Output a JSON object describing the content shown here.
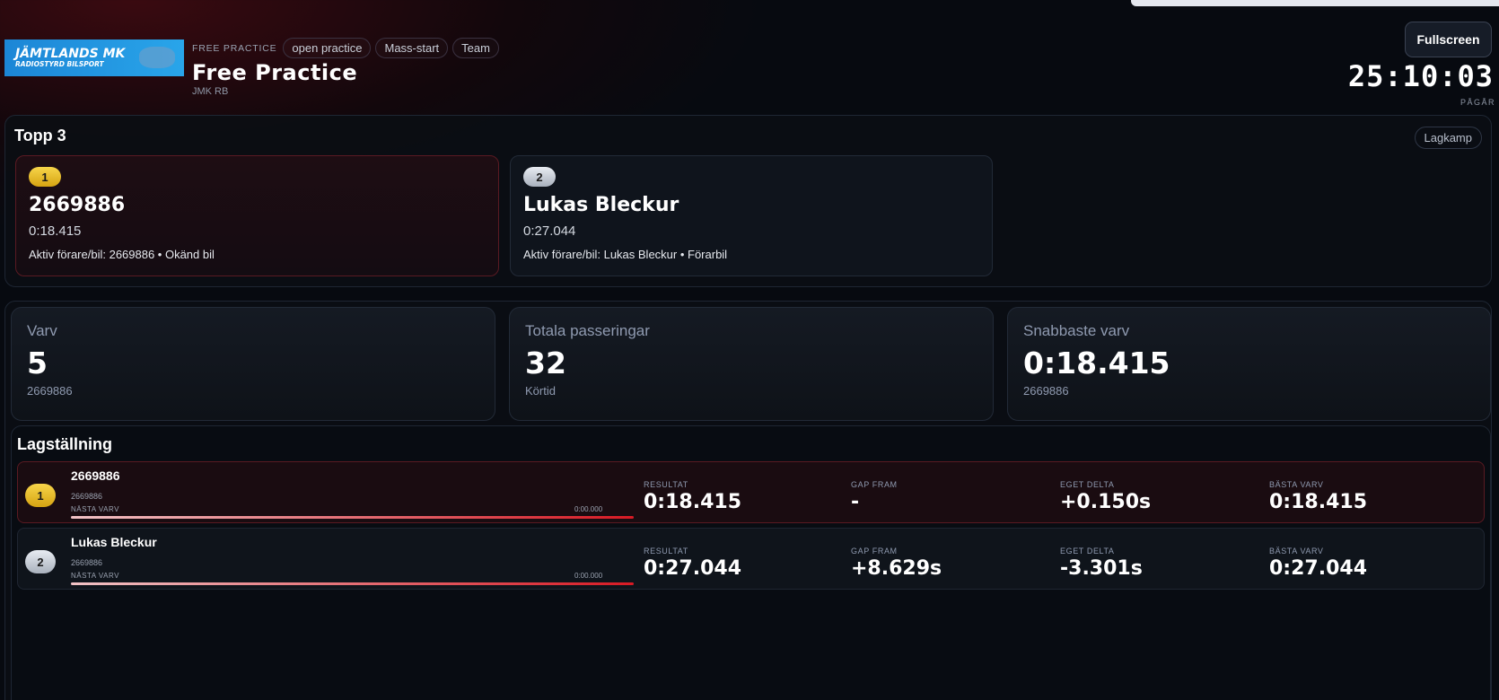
{
  "header": {
    "logo_text": "JÄMTLANDS MK",
    "logo_subtext": "RADIOSTYRD BILSPORT",
    "session_kind": "FREE PRACTICE",
    "chips": [
      "open practice",
      "Mass-start",
      "Team"
    ],
    "title": "Free Practice",
    "subtitle": "JMK RB",
    "fullscreen_label": "Fullscreen",
    "timer": "25:10:03",
    "status": "PÅGÅR"
  },
  "top3": {
    "title": "Topp 3",
    "mode_label": "Lagkamp",
    "cards": [
      {
        "pos": "1",
        "name": "2669886",
        "time": "0:18.415",
        "info": "Aktiv förare/bil: 2669886 • Okänd bil"
      },
      {
        "pos": "2",
        "name": "Lukas Bleckur",
        "time": "0:27.044",
        "info": "Aktiv förare/bil: Lukas Bleckur • Förarbil"
      }
    ]
  },
  "stats": [
    {
      "label": "Varv",
      "value": "5",
      "sub": "2669886"
    },
    {
      "label": "Totala passeringar",
      "value": "32",
      "sub": "Körtid"
    },
    {
      "label": "Snabbaste varv",
      "value": "0:18.415",
      "sub": "2669886"
    }
  ],
  "standings": {
    "title": "Lagställning",
    "columns": [
      "RESULTAT",
      "GAP FRAM",
      "EGET DELTA",
      "BÄSTA VARV"
    ],
    "next_lap_label": "NÄSTA VARV",
    "rows": [
      {
        "pos": "1",
        "name": "2669886",
        "sub": "2669886",
        "next_time": "0:00.000",
        "next_progress": 1.0,
        "values": [
          "0:18.415",
          "-",
          "+0.150s",
          "0:18.415"
        ]
      },
      {
        "pos": "2",
        "name": "Lukas Bleckur",
        "sub": "2669886",
        "next_time": "0:00.000",
        "next_progress": 1.0,
        "values": [
          "0:27.044",
          "+8.629s",
          "-3.301s",
          "0:27.044"
        ]
      }
    ]
  },
  "colors": {
    "accent": "#d81a24",
    "gold": "#f2c53a",
    "silver": "#c9d0da"
  }
}
